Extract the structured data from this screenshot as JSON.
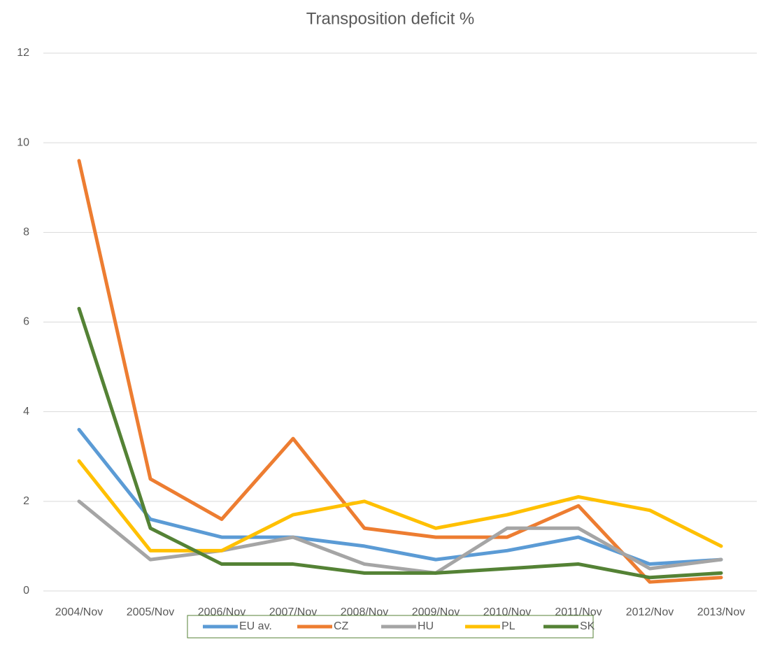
{
  "chart_data": {
    "type": "line",
    "title": "Transposition deficit %",
    "categories": [
      "2004/Nov",
      "2005/Nov",
      "2006/Nov",
      "2007/Nov",
      "2008/Nov",
      "2009/Nov",
      "2010/Nov",
      "2011/Nov",
      "2012/Nov",
      "2013/Nov"
    ],
    "series": [
      {
        "name": "EU av.",
        "color": "#5b9bd5",
        "values": [
          3.6,
          1.6,
          1.2,
          1.2,
          1.0,
          0.7,
          0.9,
          1.2,
          0.6,
          0.7
        ]
      },
      {
        "name": "CZ",
        "color": "#ed7d31",
        "values": [
          9.6,
          2.5,
          1.6,
          3.4,
          1.4,
          1.2,
          1.2,
          1.9,
          0.2,
          0.3
        ]
      },
      {
        "name": "HU",
        "color": "#a5a5a5",
        "values": [
          2.0,
          0.7,
          0.9,
          1.2,
          0.6,
          0.4,
          1.4,
          1.4,
          0.5,
          0.7
        ]
      },
      {
        "name": "PL",
        "color": "#ffc000",
        "values": [
          2.9,
          0.9,
          0.9,
          1.7,
          2.0,
          1.4,
          1.7,
          2.1,
          1.8,
          1.0
        ]
      },
      {
        "name": "SK",
        "color": "#548235",
        "values": [
          6.3,
          1.4,
          0.6,
          0.6,
          0.4,
          0.4,
          0.5,
          0.6,
          0.3,
          0.4
        ]
      }
    ],
    "ylim": [
      0,
      12
    ],
    "yticks": [
      0,
      2,
      4,
      6,
      8,
      10,
      12
    ],
    "grid": true,
    "legend": "bottom"
  }
}
